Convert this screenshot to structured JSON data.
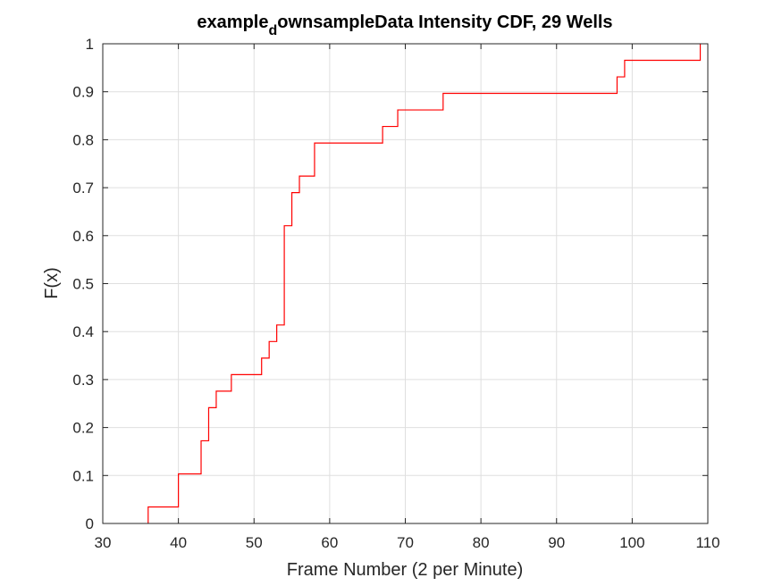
{
  "chart_data": {
    "type": "line",
    "subtype": "empirical-cdf-stairs",
    "title_main": "example",
    "title_subscript": "d",
    "title_rest": "ownsampleData Intensity CDF, 29 Wells",
    "xlabel": "Frame Number (2 per Minute)",
    "ylabel": "F(x)",
    "xlim": [
      30,
      110
    ],
    "ylim": [
      0,
      1
    ],
    "xticks": [
      30,
      40,
      50,
      60,
      70,
      80,
      90,
      100,
      110
    ],
    "xtick_labels": [
      "30",
      "40",
      "50",
      "60",
      "70",
      "80",
      "90",
      "100",
      "110"
    ],
    "yticks": [
      0,
      0.1,
      0.2,
      0.3,
      0.4,
      0.5,
      0.6,
      0.7,
      0.8,
      0.9,
      1
    ],
    "ytick_labels": [
      "0",
      "0.1",
      "0.2",
      "0.3",
      "0.4",
      "0.5",
      "0.6",
      "0.7",
      "0.8",
      "0.9",
      "1"
    ],
    "grid": true,
    "line_color": "#ff0000",
    "series": [
      {
        "x": [
          36,
          40,
          43,
          44,
          45,
          47,
          51,
          52,
          53,
          54,
          55,
          56,
          58,
          67,
          69,
          75,
          98,
          99,
          109
        ],
        "y": [
          0.0345,
          0.1034,
          0.1724,
          0.2414,
          0.2759,
          0.3103,
          0.3448,
          0.3793,
          0.4138,
          0.6207,
          0.6897,
          0.7241,
          0.7931,
          0.8276,
          0.8621,
          0.8966,
          0.931,
          0.9655,
          1.0
        ]
      }
    ]
  }
}
